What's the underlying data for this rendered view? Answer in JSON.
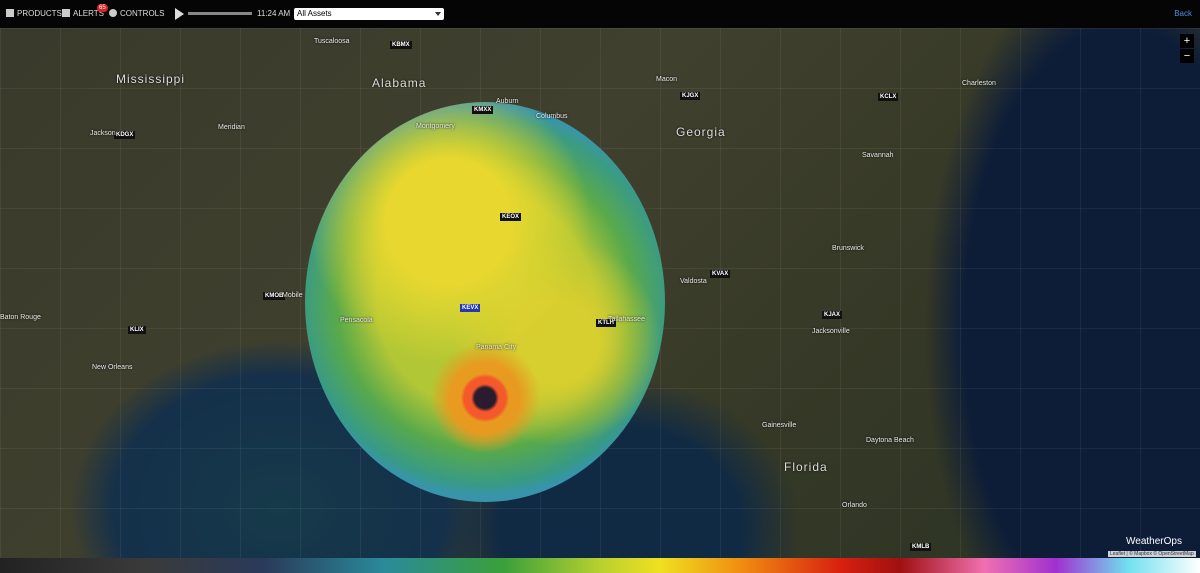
{
  "toolbar": {
    "products": "PRODUCTS",
    "alerts": "ALERTS",
    "alert_count": "65",
    "controls": "CONTROLS",
    "time": "11:24 AM",
    "asset_filter": "All Assets",
    "back": "Back"
  },
  "map": {
    "zoom_in": "+",
    "zoom_out": "−",
    "stations": [
      "KBMX",
      "KMXX",
      "KJGX",
      "KCLX",
      "KDGX",
      "KEOX",
      "KVAX",
      "KEVX",
      "KMOB",
      "KLIX",
      "KTLH",
      "KJAX",
      "KMLB"
    ],
    "states": [
      "Mississippi",
      "Alabama",
      "Georgia",
      "Florida"
    ],
    "cities": [
      "New Orleans",
      "Baton Rouge",
      "Jackson",
      "Montgomery",
      "Tallahassee",
      "Jacksonville",
      "Savannah",
      "Charleston",
      "Pensacola",
      "Mobile",
      "Orlando",
      "Gainesville",
      "Valdosta",
      "Macon",
      "Columbus",
      "Tuscaloosa",
      "Auburn",
      "Meridian",
      "Panama City",
      "Daytona Beach",
      "Brunswick"
    ],
    "attribution": "Leaflet | © Mapbox © OpenStreetMap",
    "logo": "WeatherOps"
  }
}
